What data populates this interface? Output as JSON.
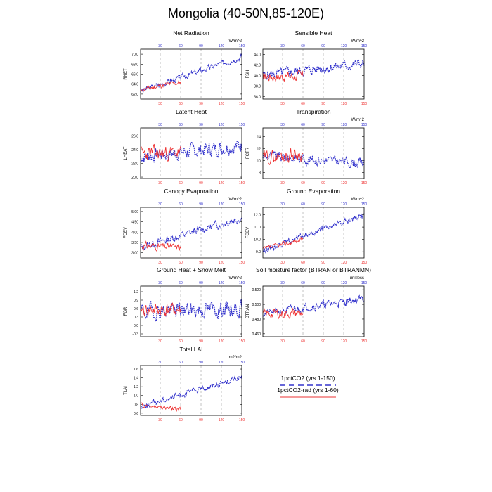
{
  "page": {
    "title": "Mongolia (40-50N,85-120E)"
  },
  "legend": [
    {
      "label": "1pctCO2 (yrs 1-150)",
      "color": "#3333cc",
      "dash": true
    },
    {
      "label": "1pctCO2-rad (yrs 1-60)",
      "color": "#ee3333",
      "dash": false
    }
  ],
  "chart_data": [
    {
      "type": "line",
      "title": "Net Radiation",
      "ylabel": "RNET",
      "units": "W/m^2",
      "xlim": [
        1,
        150
      ],
      "ylim": [
        61,
        71
      ],
      "yticks": [
        "62.0",
        "64.0",
        "66.0",
        "68.0",
        "70.0"
      ],
      "ytick_values": [
        62,
        64,
        66,
        68,
        70
      ],
      "xticks_top": [
        "30",
        "60",
        "90",
        "120",
        "150"
      ],
      "xticks_bottom": [
        "30",
        "60",
        "90",
        "120",
        "150"
      ],
      "series": [
        {
          "color": "#3333cc",
          "dashed": true,
          "length": 150,
          "start": 62.6,
          "end": 69.5,
          "amp": 0.9,
          "seed": 3
        },
        {
          "color": "#ee3333",
          "dashed": false,
          "length": 60,
          "start": 62.9,
          "end": 64.4,
          "amp": 0.8,
          "seed": 11
        }
      ]
    },
    {
      "type": "line",
      "title": "Sensible Heat",
      "ylabel": "FSH",
      "units": "W/m^2",
      "xlim": [
        1,
        150
      ],
      "ylim": [
        35.5,
        45
      ],
      "yticks": [
        "36.0",
        "38.0",
        "40.0",
        "42.0",
        "44.0"
      ],
      "ytick_values": [
        36,
        38,
        40,
        42,
        44
      ],
      "xticks_top": [
        "30",
        "60",
        "90",
        "120",
        "150"
      ],
      "xticks_bottom": [
        "30",
        "60",
        "90",
        "120",
        "150"
      ],
      "series": [
        {
          "color": "#3333cc",
          "dashed": true,
          "length": 150,
          "start": 40.0,
          "end": 42.3,
          "amp": 1.5,
          "seed": 5
        },
        {
          "color": "#ee3333",
          "dashed": false,
          "length": 60,
          "start": 39.8,
          "end": 39.9,
          "amp": 1.6,
          "seed": 17
        }
      ]
    },
    {
      "type": "line",
      "title": "Latent Heat",
      "ylabel": "LHEAT",
      "units": "",
      "xlim": [
        1,
        150
      ],
      "ylim": [
        19.8,
        27.2
      ],
      "yticks": [
        "20.0",
        "22.0",
        "24.0",
        "26.0"
      ],
      "ytick_values": [
        20,
        22,
        24,
        26
      ],
      "xticks_top": [
        "30",
        "60",
        "90",
        "120",
        "150"
      ],
      "xticks_bottom": [
        "30",
        "60",
        "90",
        "120",
        "150"
      ],
      "series": [
        {
          "color": "#3333cc",
          "dashed": true,
          "length": 150,
          "start": 23.0,
          "end": 24.6,
          "amp": 1.6,
          "seed": 7
        },
        {
          "color": "#ee3333",
          "dashed": false,
          "length": 60,
          "start": 23.4,
          "end": 23.6,
          "amp": 1.7,
          "seed": 23
        }
      ]
    },
    {
      "type": "line",
      "title": "Transpiration",
      "ylabel": "FCTR",
      "units": "W/m^2",
      "xlim": [
        1,
        150
      ],
      "ylim": [
        7,
        15.5
      ],
      "yticks": [
        "8",
        "10",
        "12",
        "14"
      ],
      "ytick_values": [
        8,
        10,
        12,
        14
      ],
      "xticks_top": [
        "30",
        "60",
        "90",
        "120",
        "150"
      ],
      "xticks_bottom": [
        "30",
        "60",
        "90",
        "120",
        "150"
      ],
      "series": [
        {
          "color": "#3333cc",
          "dashed": true,
          "length": 150,
          "start": 10.8,
          "end": 9.6,
          "amp": 1.3,
          "seed": 9
        },
        {
          "color": "#ee3333",
          "dashed": false,
          "length": 60,
          "start": 10.5,
          "end": 11.2,
          "amp": 1.8,
          "seed": 29
        }
      ]
    },
    {
      "type": "line",
      "title": "Canopy Evaporation",
      "ylabel": "FCEV",
      "units": "W/m^2",
      "xlim": [
        1,
        150
      ],
      "ylim": [
        2.75,
        5.2
      ],
      "yticks": [
        "3.00",
        "3.50",
        "4.00",
        "4.50",
        "5.00"
      ],
      "ytick_values": [
        3,
        3.5,
        4,
        4.5,
        5
      ],
      "xticks_top": [
        "30",
        "60",
        "90",
        "120",
        "150"
      ],
      "xticks_bottom": [
        "30",
        "60",
        "90",
        "120",
        "150"
      ],
      "series": [
        {
          "color": "#3333cc",
          "dashed": true,
          "length": 150,
          "start": 3.25,
          "end": 4.7,
          "amp": 0.3,
          "seed": 13
        },
        {
          "color": "#ee3333",
          "dashed": false,
          "length": 60,
          "start": 3.35,
          "end": 3.25,
          "amp": 0.28,
          "seed": 31
        }
      ]
    },
    {
      "type": "line",
      "title": "Ground Evaporation",
      "ylabel": "FGEV",
      "units": "W/m^2",
      "xlim": [
        1,
        150
      ],
      "ylim": [
        8.5,
        12.6
      ],
      "yticks": [
        "9.0",
        "10.0",
        "11.0",
        "12.0"
      ],
      "ytick_values": [
        9,
        10,
        11,
        12
      ],
      "xticks_top": [
        "30",
        "60",
        "90",
        "120",
        "150"
      ],
      "xticks_bottom": [
        "30",
        "60",
        "90",
        "120",
        "150"
      ],
      "series": [
        {
          "color": "#3333cc",
          "dashed": true,
          "length": 150,
          "start": 9.1,
          "end": 12.0,
          "amp": 0.35,
          "seed": 15
        },
        {
          "color": "#ee3333",
          "dashed": false,
          "length": 60,
          "start": 9.2,
          "end": 10.0,
          "amp": 0.3,
          "seed": 37
        }
      ]
    },
    {
      "type": "line",
      "title": "Ground Heat + Snow Melt",
      "ylabel": "FGR",
      "units": "W/m^2",
      "xlim": [
        1,
        150
      ],
      "ylim": [
        -0.4,
        1.4
      ],
      "yticks": [
        "-0.3",
        "0.0",
        "0.3",
        "0.6",
        "0.9",
        "1.2"
      ],
      "ytick_values": [
        -0.3,
        0,
        0.3,
        0.6,
        0.9,
        1.2
      ],
      "xticks_top": [
        "30",
        "60",
        "90",
        "120",
        "150"
      ],
      "xticks_bottom": [
        "30",
        "60",
        "90",
        "120",
        "150"
      ],
      "series": [
        {
          "color": "#3333cc",
          "dashed": true,
          "length": 150,
          "start": 0.5,
          "end": 0.6,
          "amp": 0.45,
          "seed": 19
        },
        {
          "color": "#ee3333",
          "dashed": false,
          "length": 60,
          "start": 0.55,
          "end": 0.55,
          "amp": 0.4,
          "seed": 41
        }
      ]
    },
    {
      "type": "line",
      "title": "Soil moisture factor (BTRAN or BTRANMN)",
      "ylabel": "BTRAN",
      "units": "unitless",
      "xlim": [
        1,
        150
      ],
      "ylim": [
        0.456,
        0.525
      ],
      "yticks": [
        "0.460",
        "0.480",
        "0.500",
        "0.520"
      ],
      "ytick_values": [
        0.46,
        0.48,
        0.5,
        0.52
      ],
      "xticks_top": [
        "30",
        "60",
        "90",
        "120",
        "150"
      ],
      "xticks_bottom": [
        "30",
        "60",
        "90",
        "120",
        "150"
      ],
      "series": [
        {
          "color": "#3333cc",
          "dashed": true,
          "length": 150,
          "start": 0.487,
          "end": 0.508,
          "amp": 0.008,
          "seed": 21
        },
        {
          "color": "#ee3333",
          "dashed": false,
          "length": 60,
          "start": 0.487,
          "end": 0.488,
          "amp": 0.01,
          "seed": 43
        }
      ]
    },
    {
      "type": "line",
      "title": "Total LAI",
      "ylabel": "TLAI",
      "units": "m2/m2",
      "xlim": [
        1,
        150
      ],
      "ylim": [
        0.55,
        1.68
      ],
      "yticks": [
        "0.6",
        "0.8",
        "1.0",
        "1.2",
        "1.4",
        "1.6"
      ],
      "ytick_values": [
        0.6,
        0.8,
        1.0,
        1.2,
        1.4,
        1.6
      ],
      "xticks_top": [
        "30",
        "60",
        "90",
        "120",
        "150"
      ],
      "xticks_bottom": [
        "30",
        "60",
        "90",
        "120",
        "150"
      ],
      "series": [
        {
          "color": "#3333cc",
          "dashed": true,
          "length": 150,
          "start": 0.75,
          "end": 1.42,
          "amp": 0.1,
          "seed": 25
        },
        {
          "color": "#ee3333",
          "dashed": false,
          "length": 60,
          "start": 0.78,
          "end": 0.68,
          "amp": 0.08,
          "seed": 47
        }
      ]
    }
  ]
}
